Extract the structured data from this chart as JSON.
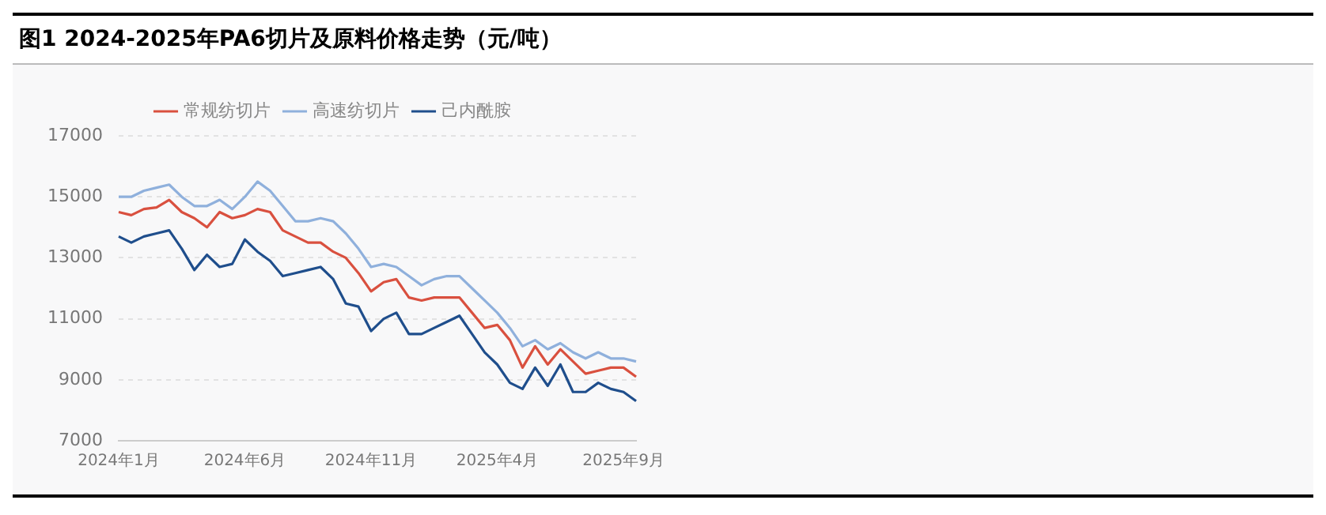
{
  "chart_data": {
    "type": "line",
    "title": "图1 2024-2025年PA6切片及原料价格走势（元/吨）",
    "categories": [
      "2024年1月",
      null,
      null,
      null,
      null,
      null,
      null,
      null,
      null,
      null,
      "2024年6月",
      null,
      null,
      null,
      null,
      null,
      null,
      null,
      null,
      null,
      "2024年11月",
      null,
      null,
      null,
      null,
      null,
      null,
      null,
      null,
      null,
      "2025年4月",
      null,
      null,
      null,
      null,
      null,
      null,
      null,
      null,
      null,
      "2025年9月",
      null
    ],
    "series": [
      {
        "name": "常规纺切片",
        "color": "#d9503f",
        "values": [
          14500,
          14400,
          14600,
          14650,
          14900,
          14500,
          14300,
          14000,
          14500,
          14300,
          14400,
          14600,
          14500,
          13900,
          13700,
          13500,
          13500,
          13200,
          13000,
          12500,
          11900,
          12200,
          12300,
          11700,
          11600,
          11700,
          11700,
          11700,
          11200,
          10700,
          10800,
          10300,
          9400,
          10100,
          9500,
          10000,
          9600,
          9200,
          9300,
          9400,
          9400,
          9100
        ]
      },
      {
        "name": "高速纺切片",
        "color": "#8fb0dc",
        "values": [
          15000,
          15000,
          15200,
          15300,
          15400,
          15000,
          14700,
          14700,
          14900,
          14600,
          15000,
          15500,
          15200,
          14700,
          14200,
          14200,
          14300,
          14200,
          13800,
          13300,
          12700,
          12800,
          12700,
          12400,
          12100,
          12300,
          12400,
          12400,
          12000,
          11600,
          11200,
          10700,
          10100,
          10300,
          10000,
          10200,
          9900,
          9700,
          9900,
          9700,
          9700,
          9600
        ]
      },
      {
        "name": "己内酰胺",
        "color": "#1f4e8c",
        "values": [
          13700,
          13500,
          13700,
          13800,
          13900,
          13300,
          12600,
          13100,
          12700,
          12800,
          13600,
          13200,
          12900,
          12400,
          12500,
          12600,
          12700,
          12300,
          11500,
          11400,
          10600,
          11000,
          11200,
          10500,
          10500,
          10700,
          10900,
          11100,
          10500,
          9900,
          9500,
          8900,
          8700,
          9400,
          8800,
          9500,
          8600,
          8600,
          8900,
          8700,
          8600,
          8300
        ]
      }
    ],
    "ylim": [
      7000,
      17000
    ],
    "yticks": [
      7000,
      9000,
      11000,
      13000,
      15000,
      17000
    ],
    "grid": "y",
    "legend": "top",
    "marker": "none",
    "line_style": "solid"
  }
}
